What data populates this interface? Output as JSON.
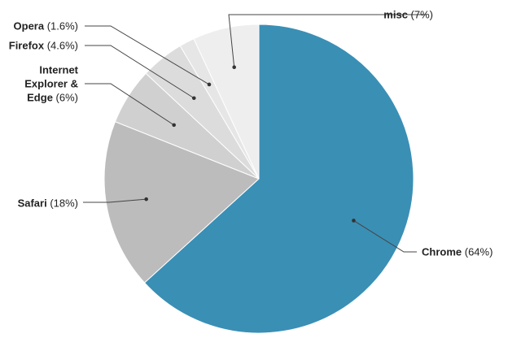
{
  "chart_data": {
    "type": "pie",
    "title": "",
    "start": "top",
    "direction": "clockwise",
    "slices": [
      {
        "name": "Chrome",
        "value": 64,
        "value_label": "(64%)",
        "color": "#3a8fb5"
      },
      {
        "name": "Safari",
        "value": 18,
        "value_label": "(18%)",
        "color": "#bcbcbc"
      },
      {
        "name_lines": [
          "Internet",
          "Explorer &",
          "Edge"
        ],
        "value": 6,
        "value_label": "(6%)",
        "color": "#d0d0d0"
      },
      {
        "name": "Firefox",
        "value": 4.6,
        "value_label": "(4.6%)",
        "color": "#dcdcdc"
      },
      {
        "name": "Opera",
        "value": 1.6,
        "value_label": "(1.6%)",
        "color": "#e6e6e6"
      },
      {
        "name": "misc",
        "value": 7,
        "value_label": "(7%)",
        "color": "#eeeeee"
      }
    ]
  }
}
